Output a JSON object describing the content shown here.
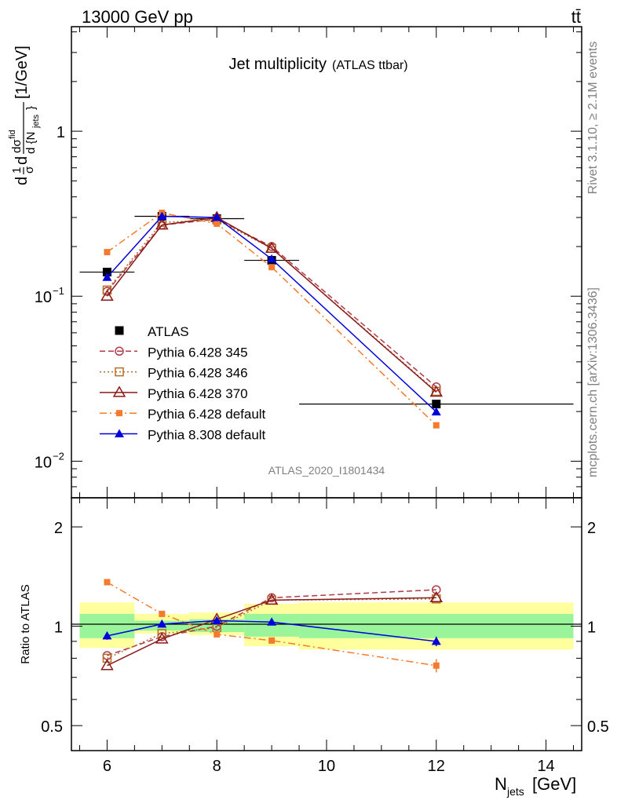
{
  "header": {
    "left": "13000 GeV pp",
    "right": "tt̄"
  },
  "side": {
    "rivet": "Rivet 3.1.10, ≥ 2.1M events",
    "mcplots": "mcplots.cern.ch [arXiv:1306.3436]"
  },
  "chart_data": [
    {
      "type": "scatter",
      "title": "Jet multiplicity",
      "subtitle": "(ATLAS ttbar)",
      "ylabel": "d(1/σ) dσ^fid / d{N_jets} [1/GeV]",
      "yscale": "log",
      "ylim": [
        0.006,
        4.3
      ],
      "xlim": [
        5.35,
        14.65
      ],
      "yticks": [
        "10^-2",
        "10^-1",
        "1"
      ],
      "watermark": "ATLAS_2020_I1801434",
      "legend_position": "center-left",
      "x": [
        6,
        7,
        8,
        9,
        12
      ],
      "series": [
        {
          "name": "ATLAS",
          "color": "#000000",
          "marker": "filled-square",
          "values": [
            0.14,
            0.305,
            0.295,
            0.165,
            0.0222
          ],
          "x_errors": [
            [
              5.5,
              6.5
            ],
            [
              6.5,
              7.5
            ],
            [
              7.5,
              8.5
            ],
            [
              8.5,
              9.5
            ],
            [
              9.5,
              14.5
            ]
          ]
        },
        {
          "name": "Pythia 6.428 345",
          "color": "#b03a48",
          "marker": "open-circle",
          "dash": "dashed",
          "values": [
            0.107,
            0.27,
            0.293,
            0.2,
            0.0282
          ]
        },
        {
          "name": "Pythia 6.428 346",
          "color": "#b27029",
          "marker": "open-square",
          "dash": "dotted",
          "values": [
            0.109,
            0.28,
            0.29,
            0.195,
            0.0265
          ]
        },
        {
          "name": "Pythia 6.428 370",
          "color": "#8b1a1a",
          "marker": "open-triangle",
          "dash": "solid",
          "values": [
            0.1,
            0.27,
            0.3,
            0.195,
            0.0262
          ]
        },
        {
          "name": "Pythia 6.428 default",
          "color": "#f37b2d",
          "marker": "filled-square-small",
          "dash": "dashdot",
          "values": [
            0.185,
            0.32,
            0.275,
            0.15,
            0.0165
          ]
        },
        {
          "name": "Pythia 8.308 default",
          "color": "#0000dd",
          "marker": "filled-triangle",
          "dash": "solid",
          "values": [
            0.13,
            0.305,
            0.3,
            0.168,
            0.0199
          ]
        }
      ]
    },
    {
      "type": "scatter",
      "ylabel": "Ratio to ATLAS",
      "xlabel": "N_jets [GeV]",
      "yscale": "log",
      "ylim": [
        0.42,
        2.45
      ],
      "xlim": [
        5.35,
        14.65
      ],
      "yticks": [
        0.5,
        1,
        2
      ],
      "xticks": [
        6,
        8,
        10,
        12,
        14
      ],
      "bands": {
        "bins": [
          [
            5.5,
            6.5
          ],
          [
            6.5,
            7.5
          ],
          [
            7.5,
            8.5
          ],
          [
            8.5,
            9.5
          ],
          [
            9.5,
            14.5
          ]
        ],
        "stat_sys": [
          [
            0.86,
            1.18
          ],
          [
            0.95,
            1.09
          ],
          [
            0.94,
            1.1
          ],
          [
            0.87,
            1.17
          ],
          [
            0.85,
            1.18
          ]
        ],
        "stat": [
          [
            0.92,
            1.09
          ],
          [
            0.97,
            1.04
          ],
          [
            0.96,
            1.05
          ],
          [
            0.93,
            1.09
          ],
          [
            0.92,
            1.09
          ]
        ],
        "colors": {
          "stat_sys": "#ffff9e",
          "stat": "#9af59a"
        }
      },
      "x": [
        6,
        7,
        8,
        9,
        12
      ],
      "series": [
        {
          "name": "Pythia 6.428 345",
          "color": "#b03a48",
          "marker": "open-circle",
          "dash": "dashed",
          "values": [
            0.815,
            0.93,
            1.0,
            1.22,
            1.29
          ]
        },
        {
          "name": "Pythia 6.428 346",
          "color": "#b27029",
          "marker": "open-square",
          "dash": "dotted",
          "values": [
            0.8,
            0.95,
            0.99,
            1.2,
            1.21
          ]
        },
        {
          "name": "Pythia 6.428 370",
          "color": "#8b1a1a",
          "marker": "open-triangle",
          "dash": "solid",
          "values": [
            0.76,
            0.915,
            1.05,
            1.2,
            1.22
          ]
        },
        {
          "name": "Pythia 6.428 default",
          "color": "#f37b2d",
          "marker": "filled-square-small",
          "dash": "dashdot",
          "values": [
            1.36,
            1.09,
            0.945,
            0.905,
            0.76
          ],
          "errors": [
            0.03,
            0.015,
            0.015,
            0.02,
            0.035
          ]
        },
        {
          "name": "Pythia 8.308 default",
          "color": "#0000dd",
          "marker": "filled-triangle",
          "dash": "solid",
          "values": [
            0.935,
            1.015,
            1.04,
            1.03,
            0.9
          ],
          "errors": [
            0.025,
            0.01,
            0.01,
            0.015,
            0.03
          ]
        }
      ]
    }
  ]
}
